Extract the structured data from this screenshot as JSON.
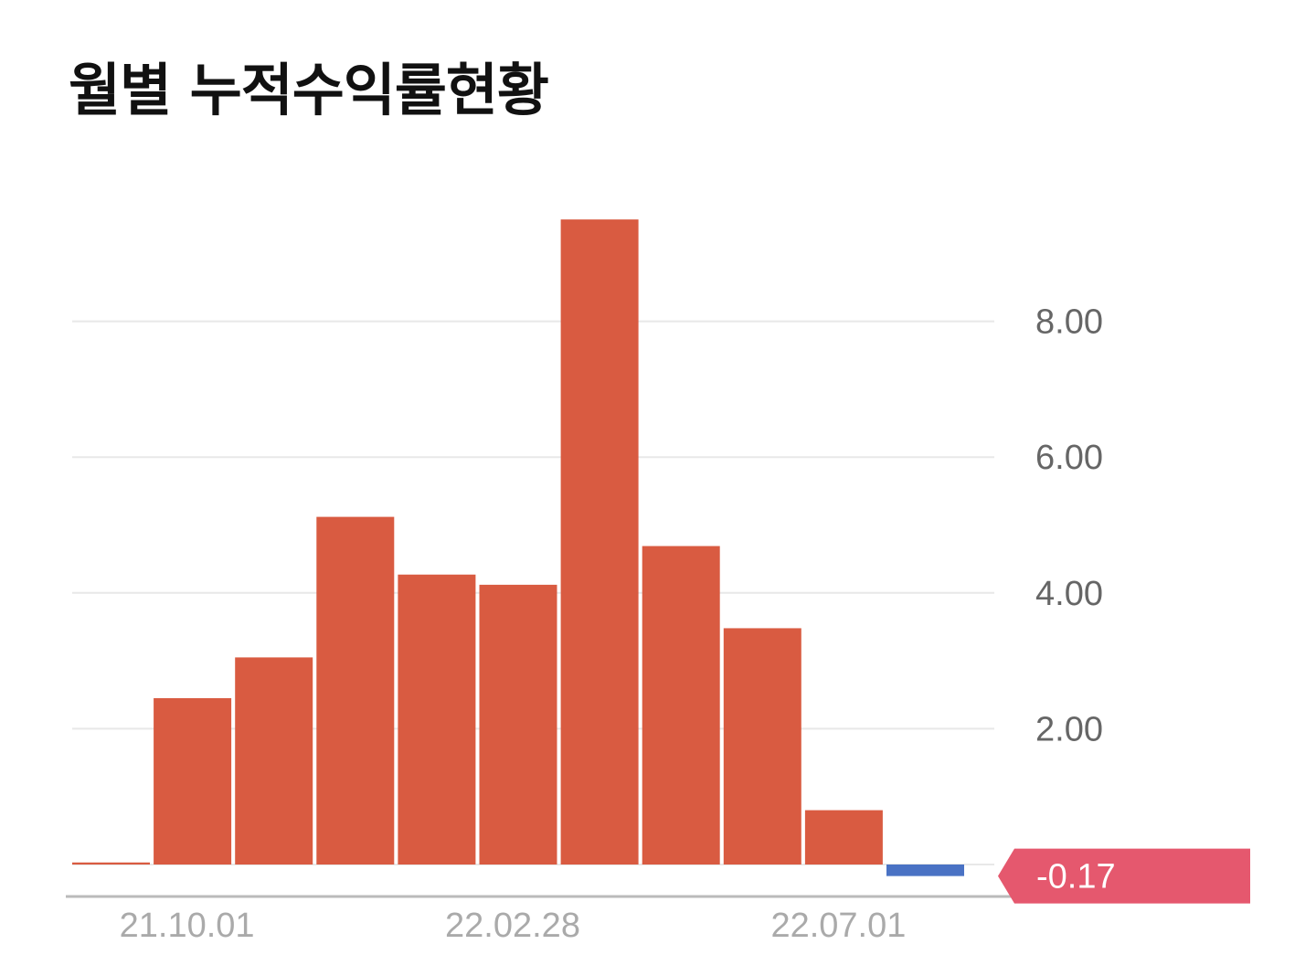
{
  "title": "월별 누적수익률현황",
  "chart_data": {
    "type": "bar",
    "title": "월별 누적수익률현황",
    "values": [
      0.03,
      2.45,
      3.05,
      5.12,
      4.27,
      4.12,
      9.5,
      4.69,
      3.48,
      0.8,
      -0.17
    ],
    "x_tick_labels": [
      {
        "index": 1,
        "label": "21.10.01"
      },
      {
        "index": 5,
        "label": "22.02.28"
      },
      {
        "index": 9,
        "label": "22.07.01"
      }
    ],
    "y_ticks": [
      {
        "value": 2,
        "label": "2.00"
      },
      {
        "value": 4,
        "label": "4.00"
      },
      {
        "value": 6,
        "label": "6.00"
      },
      {
        "value": 8,
        "label": "8.00"
      }
    ],
    "ylim": [
      -0.5,
      10
    ],
    "grid": true,
    "current_value": -0.17,
    "current_value_label": "-0.17",
    "positive_color": "#d95b41",
    "negative_color": "#4a72c4",
    "badge_color": "#e5586e"
  }
}
